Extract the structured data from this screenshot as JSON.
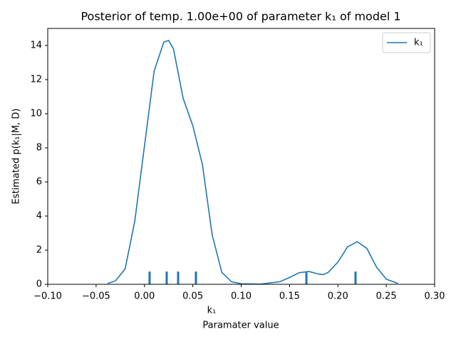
{
  "chart_data": {
    "type": "line",
    "title": "Posterior of temp. 1.00e+00 of parameter k₁ of model 1",
    "x_label_symbol": "k₁",
    "x_label": "Paramater value",
    "y_label": "Estimated p(k₁|M, D)",
    "xlim": [
      -0.1,
      0.3
    ],
    "ylim": [
      0,
      15
    ],
    "xticks": [
      {
        "value": -0.1,
        "label": "−0.10"
      },
      {
        "value": -0.05,
        "label": "−0.05"
      },
      {
        "value": 0,
        "label": "0.00"
      },
      {
        "value": 0.05,
        "label": "0.05"
      },
      {
        "value": 0.1,
        "label": "0.10"
      },
      {
        "value": 0.15,
        "label": "0.15"
      },
      {
        "value": 0.2,
        "label": "0.20"
      },
      {
        "value": 0.25,
        "label": "0.25"
      },
      {
        "value": 0.3,
        "label": "0.30"
      }
    ],
    "yticks": [
      0,
      2,
      4,
      6,
      8,
      10,
      12,
      14
    ],
    "legend": "upper right",
    "series": [
      {
        "name": "k₁",
        "color": "#1f77b4",
        "x": [
          -0.038,
          -0.03,
          -0.02,
          -0.01,
          0,
          0.01,
          0.02,
          0.025,
          0.03,
          0.04,
          0.05,
          0.06,
          0.07,
          0.08,
          0.09,
          0.1,
          0.12,
          0.14,
          0.15,
          0.16,
          0.17,
          0.18,
          0.185,
          0.19,
          0.2,
          0.21,
          0.22,
          0.23,
          0.24,
          0.25,
          0.262
        ],
        "values": [
          0.05,
          0.2,
          0.9,
          3.7,
          8.1,
          12.5,
          14.2,
          14.3,
          13.8,
          10.9,
          9.3,
          7.0,
          2.9,
          0.7,
          0.15,
          0.03,
          0.01,
          0.15,
          0.4,
          0.68,
          0.75,
          0.6,
          0.57,
          0.7,
          1.3,
          2.2,
          2.5,
          2.1,
          1.0,
          0.3,
          0.05
        ]
      }
    ],
    "rug": {
      "color": "#1f77b4",
      "x": [
        0.0053,
        0.023,
        0.0348,
        0.0532,
        0.1674,
        0.2182
      ]
    }
  }
}
